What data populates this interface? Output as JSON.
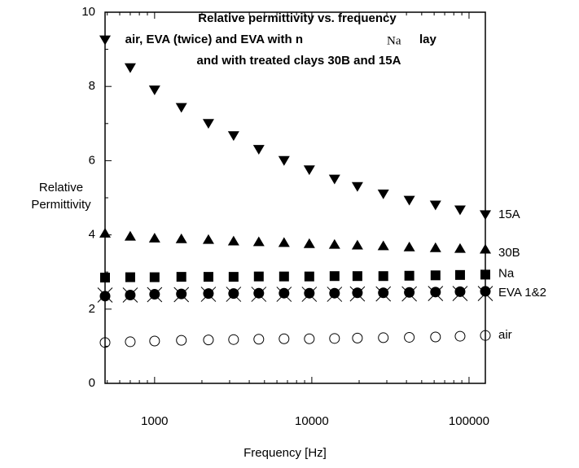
{
  "chart_data": {
    "type": "scatter",
    "title_lines": [
      "Relative permittivity vs. frequency",
      "air, EVA (twice) and EVA with n",
      "lay",
      "and with treated clays 30B and 15A"
    ],
    "title_overlay": "Na",
    "x_label": "Frequency [Hz]",
    "y_label_lines": [
      "Relative",
      "Permittivity"
    ],
    "x": [
      484,
      700,
      1000,
      1480,
      2200,
      3180,
      4600,
      6660,
      9640,
      13950,
      19500,
      28500,
      41700,
      61200,
      87700,
      127000
    ],
    "log_x": true,
    "xlim": [
      484,
      127000
    ],
    "xticks": [
      1000,
      10000,
      100000
    ],
    "xminor": [
      500,
      600,
      700,
      800,
      900,
      2000,
      3000,
      4000,
      5000,
      6000,
      7000,
      8000,
      9000,
      20000,
      30000,
      40000,
      50000,
      60000,
      70000,
      80000,
      90000
    ],
    "ylim": [
      0,
      10
    ],
    "yticks": [
      0,
      2,
      4,
      6,
      8,
      10
    ],
    "yminor": [
      1,
      3,
      5,
      7,
      9
    ],
    "series": [
      {
        "name": "15A",
        "marker": "triangle-down",
        "color": "#000000",
        "values": [
          9.25,
          8.5,
          7.9,
          7.43,
          7.0,
          6.67,
          6.3,
          6.0,
          5.75,
          5.5,
          5.3,
          5.1,
          4.93,
          4.8,
          4.67,
          4.54
        ]
      },
      {
        "name": "30B",
        "marker": "triangle-up",
        "color": "#000000",
        "values": [
          4.05,
          3.97,
          3.92,
          3.9,
          3.88,
          3.84,
          3.82,
          3.8,
          3.77,
          3.75,
          3.73,
          3.71,
          3.68,
          3.66,
          3.64,
          3.62
        ]
      },
      {
        "name": "Na",
        "marker": "square",
        "color": "#000000",
        "values": [
          2.85,
          2.86,
          2.86,
          2.87,
          2.87,
          2.87,
          2.88,
          2.88,
          2.88,
          2.89,
          2.89,
          2.89,
          2.9,
          2.91,
          2.92,
          2.93
        ]
      },
      {
        "name": "EVA 1&2",
        "marker": "circle",
        "color": "#000000",
        "values": [
          2.35,
          2.38,
          2.4,
          2.41,
          2.42,
          2.42,
          2.43,
          2.43,
          2.43,
          2.43,
          2.44,
          2.44,
          2.45,
          2.46,
          2.47,
          2.48
        ]
      },
      {
        "marker": "cross",
        "color": "#000000",
        "values": [
          2.38,
          2.38,
          2.39,
          2.39,
          2.4,
          2.4,
          2.4,
          2.4,
          2.4,
          2.4,
          2.41,
          2.41,
          2.41,
          2.42,
          2.42,
          2.42
        ]
      },
      {
        "name": "air",
        "marker": "circle-open",
        "color": "#000000",
        "values": [
          1.1,
          1.12,
          1.14,
          1.16,
          1.17,
          1.18,
          1.19,
          1.2,
          1.2,
          1.21,
          1.22,
          1.23,
          1.24,
          1.25,
          1.27,
          1.29
        ]
      }
    ]
  }
}
